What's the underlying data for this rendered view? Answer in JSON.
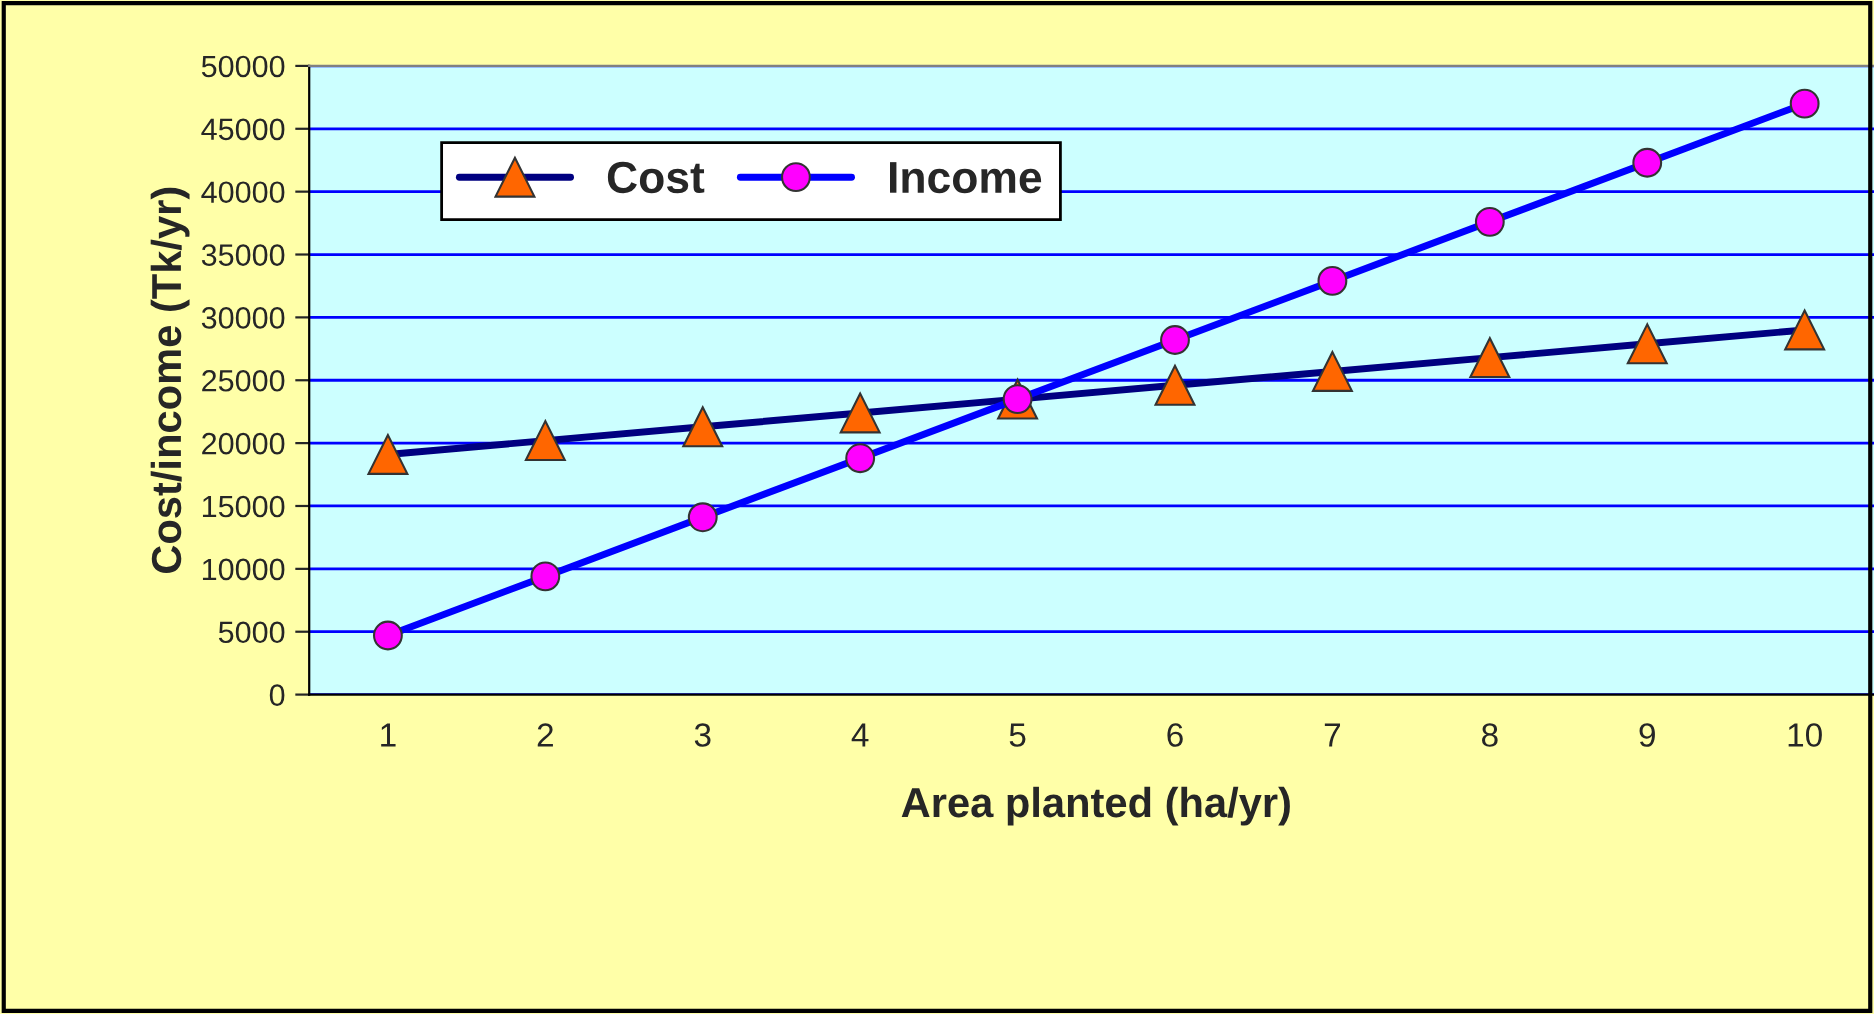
{
  "chart_data": {
    "type": "line",
    "xlabel": "Area planted (ha/yr)",
    "ylabel": "Cost/income (Tk/yr)",
    "categories": [
      "1",
      "2",
      "3",
      "4",
      "5",
      "6",
      "7",
      "8",
      "9",
      "10"
    ],
    "series": [
      {
        "name": "Cost",
        "color": "#000080",
        "marker": "triangle",
        "values": [
          19100,
          20200,
          21300,
          22400,
          23500,
          24600,
          25700,
          26800,
          27900,
          29000
        ]
      },
      {
        "name": "Income",
        "color": "#0000ff",
        "marker": "circle",
        "values": [
          4700,
          9400,
          14100,
          18800,
          23500,
          28200,
          32900,
          37600,
          42300,
          47000
        ]
      }
    ],
    "ylim": [
      0,
      50000
    ],
    "yticks": [
      0,
      5000,
      10000,
      15000,
      20000,
      25000,
      30000,
      35000,
      40000,
      45000,
      50000
    ],
    "grid": "y",
    "legend": "top left",
    "line_style": "solid"
  }
}
